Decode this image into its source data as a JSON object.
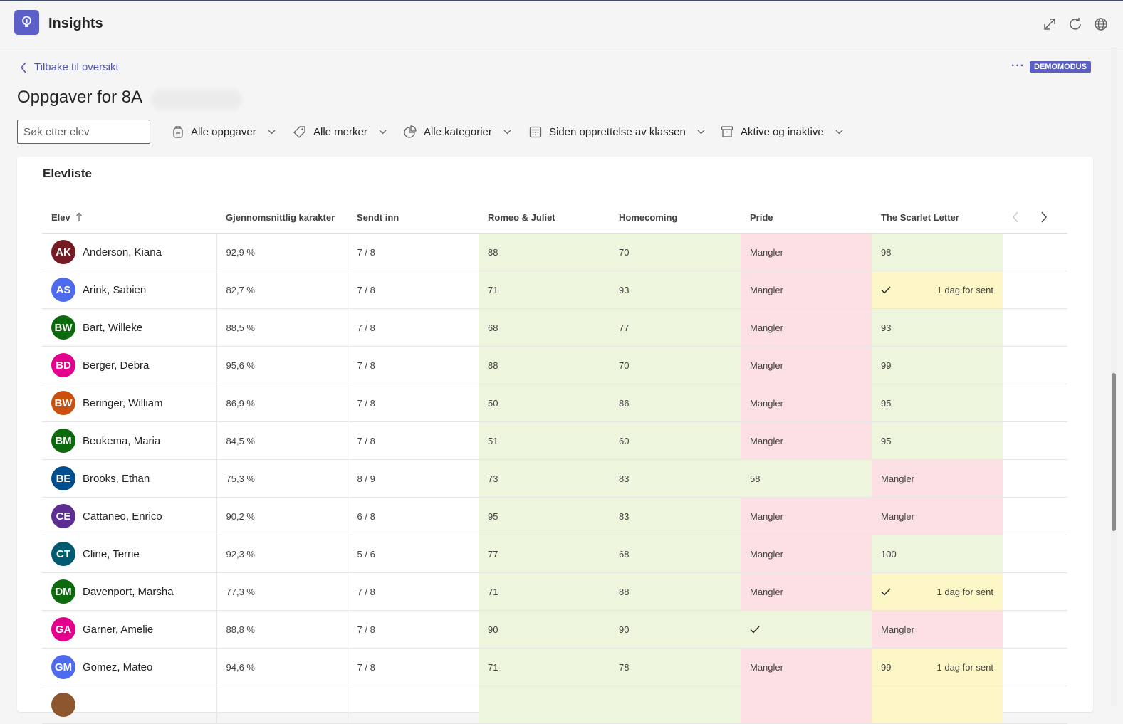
{
  "app": {
    "title": "Insights"
  },
  "nav": {
    "back_label": "Tilbake til oversikt",
    "more": "···",
    "demo_badge": "DEMOMODUS"
  },
  "page": {
    "title": "Oppgaver for 8A"
  },
  "search": {
    "placeholder": "Søk etter elev"
  },
  "filters": {
    "assignments": "Alle oppgaver",
    "tags": "Alle merker",
    "categories": "Alle kategorier",
    "period": "Siden opprettelse av klassen",
    "status": "Aktive og inaktive"
  },
  "section": {
    "title": "Elevliste"
  },
  "columns": {
    "student": "Elev",
    "avg": "Gjennomsnittlig karakter",
    "submitted": "Sendt inn",
    "a1": "Romeo & Juliet",
    "a2": "Homecoming",
    "a3": "Pride",
    "a4": "The Scarlet Letter"
  },
  "colors": {
    "accent": "#5b5fc7",
    "green": "#edf5dd",
    "red": "#fde0e3",
    "yellow": "#fdf6c7"
  },
  "rows": [
    {
      "initials": "AK",
      "name": "Anderson, Kiana",
      "avatar_color": "#751b24",
      "avg": "92,9 %",
      "submitted": "7 / 8",
      "a1": {
        "v": "88",
        "s": "green"
      },
      "a2": {
        "v": "70",
        "s": "green"
      },
      "a3": {
        "v": "Mangler",
        "s": "red"
      },
      "a4": {
        "v": "98",
        "s": "green"
      }
    },
    {
      "initials": "AS",
      "name": "Arink, Sabien",
      "avatar_color": "#4f6bed",
      "avg": "82,7 %",
      "submitted": "7 / 8",
      "a1": {
        "v": "71",
        "s": "green"
      },
      "a2": {
        "v": "93",
        "s": "green"
      },
      "a3": {
        "v": "Mangler",
        "s": "red"
      },
      "a4": {
        "v": "",
        "check": true,
        "late": "1 dag for sent",
        "s": "yellow"
      }
    },
    {
      "initials": "BW",
      "name": "Bart, Willeke",
      "avatar_color": "#0b6a0b",
      "avg": "88,5 %",
      "submitted": "7 / 8",
      "a1": {
        "v": "68",
        "s": "green"
      },
      "a2": {
        "v": "77",
        "s": "green"
      },
      "a3": {
        "v": "Mangler",
        "s": "red"
      },
      "a4": {
        "v": "93",
        "s": "green"
      }
    },
    {
      "initials": "BD",
      "name": "Berger, Debra",
      "avatar_color": "#e3008c",
      "avg": "95,6 %",
      "submitted": "7 / 8",
      "a1": {
        "v": "88",
        "s": "green"
      },
      "a2": {
        "v": "70",
        "s": "green"
      },
      "a3": {
        "v": "Mangler",
        "s": "red"
      },
      "a4": {
        "v": "99",
        "s": "green"
      }
    },
    {
      "initials": "BW",
      "name": "Beringer, William",
      "avatar_color": "#ca5010",
      "avg": "86,9 %",
      "submitted": "7 / 8",
      "a1": {
        "v": "50",
        "s": "green"
      },
      "a2": {
        "v": "86",
        "s": "green"
      },
      "a3": {
        "v": "Mangler",
        "s": "red"
      },
      "a4": {
        "v": "95",
        "s": "green"
      }
    },
    {
      "initials": "BM",
      "name": "Beukema, Maria",
      "avatar_color": "#0b6a0b",
      "avg": "84,5 %",
      "submitted": "7 / 8",
      "a1": {
        "v": "51",
        "s": "green"
      },
      "a2": {
        "v": "60",
        "s": "green"
      },
      "a3": {
        "v": "Mangler",
        "s": "red"
      },
      "a4": {
        "v": "95",
        "s": "green"
      }
    },
    {
      "initials": "BE",
      "name": "Brooks, Ethan",
      "avatar_color": "#004e8c",
      "avg": "75,3 %",
      "submitted": "8 / 9",
      "a1": {
        "v": "73",
        "s": "green"
      },
      "a2": {
        "v": "83",
        "s": "green"
      },
      "a3": {
        "v": "58",
        "s": "green"
      },
      "a4": {
        "v": "Mangler",
        "s": "red"
      }
    },
    {
      "initials": "CE",
      "name": "Cattaneo, Enrico",
      "avatar_color": "#5c2e91",
      "avg": "90,2 %",
      "submitted": "6 / 8",
      "a1": {
        "v": "95",
        "s": "green"
      },
      "a2": {
        "v": "83",
        "s": "green"
      },
      "a3": {
        "v": "Mangler",
        "s": "red"
      },
      "a4": {
        "v": "Mangler",
        "s": "red"
      }
    },
    {
      "initials": "CT",
      "name": "Cline, Terrie",
      "avatar_color": "#005b70",
      "avg": "92,3 %",
      "submitted": "5 / 6",
      "a1": {
        "v": "77",
        "s": "green"
      },
      "a2": {
        "v": "68",
        "s": "green"
      },
      "a3": {
        "v": "Mangler",
        "s": "red"
      },
      "a4": {
        "v": "100",
        "s": "green"
      }
    },
    {
      "initials": "DM",
      "name": "Davenport, Marsha",
      "avatar_color": "#0b6a0b",
      "avg": "77,3 %",
      "submitted": "7 / 8",
      "a1": {
        "v": "71",
        "s": "green"
      },
      "a2": {
        "v": "88",
        "s": "green"
      },
      "a3": {
        "v": "Mangler",
        "s": "red"
      },
      "a4": {
        "v": "",
        "check": true,
        "late": "1 dag for sent",
        "s": "yellow"
      }
    },
    {
      "initials": "GA",
      "name": "Garner, Amelie",
      "avatar_color": "#e3008c",
      "avg": "88,8 %",
      "submitted": "7 / 8",
      "a1": {
        "v": "90",
        "s": "green"
      },
      "a2": {
        "v": "90",
        "s": "green"
      },
      "a3": {
        "v": "",
        "check": true,
        "s": "green"
      },
      "a4": {
        "v": "Mangler",
        "s": "red"
      }
    },
    {
      "initials": "GM",
      "name": "Gomez, Mateo",
      "avatar_color": "#4f6bed",
      "avg": "94,6 %",
      "submitted": "7 / 8",
      "a1": {
        "v": "71",
        "s": "green"
      },
      "a2": {
        "v": "78",
        "s": "green"
      },
      "a3": {
        "v": "Mangler",
        "s": "red"
      },
      "a4": {
        "v": "99",
        "late": "1 dag for sent",
        "s": "yellow"
      }
    },
    {
      "initials": "",
      "name": "",
      "avatar_color": "#8e562e",
      "avg": "",
      "submitted": "",
      "a1": {
        "v": "",
        "s": "green"
      },
      "a2": {
        "v": "",
        "s": "green"
      },
      "a3": {
        "v": "",
        "s": "red"
      },
      "a4": {
        "v": "",
        "s": "yellow"
      }
    }
  ]
}
